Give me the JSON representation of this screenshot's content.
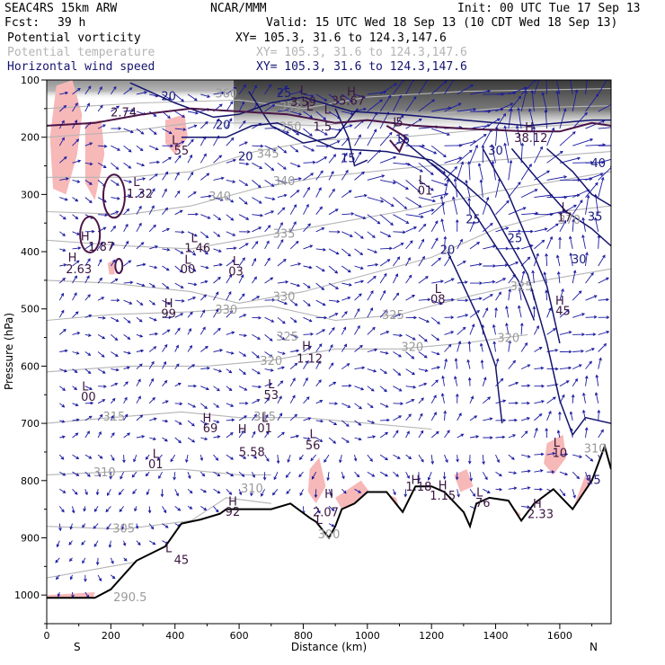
{
  "header": {
    "model": "SEAC4RS 15km ARW",
    "center": "NCAR/MMM",
    "init": "Init: 00 UTC Tue 17 Sep 13",
    "fcst_label": "Fcst:",
    "fcst_value": "39 h",
    "valid": "Valid: 15 UTC Wed 18 Sep 13 (10 CDT Wed 18 Sep 13)"
  },
  "fields": [
    {
      "name": "Potential vorticity",
      "xy": "XY= 105.3, 31.6 to 124.3,147.6",
      "color": "#000000"
    },
    {
      "name": "Potential temperature",
      "xy": "XY= 105.3, 31.6 to 124.3,147.6",
      "color": "#b4b4b4"
    },
    {
      "name": "Horizontal wind speed",
      "xy": "XY= 105.3, 31.6 to 124.3,147.6",
      "color": "#14146e"
    }
  ],
  "chart_data": {
    "type": "contour-cross-section",
    "xlabel": "Distance (km)",
    "ylabel": "Pressure (hPa)",
    "xlim": [
      0,
      1760
    ],
    "ylim": [
      1050,
      100
    ],
    "x_ticks": [
      "0",
      "200",
      "400",
      "600",
      "800",
      "1000",
      "1200",
      "1400",
      "1600"
    ],
    "y_ticks": [
      "100",
      "200",
      "300",
      "400",
      "500",
      "600",
      "700",
      "800",
      "900",
      "1000"
    ],
    "direction_start": "S",
    "direction_end": "N",
    "terrain": [
      [
        0,
        1005
      ],
      [
        150,
        1005
      ],
      [
        200,
        990
      ],
      [
        280,
        940
      ],
      [
        370,
        915
      ],
      [
        420,
        875
      ],
      [
        480,
        868
      ],
      [
        540,
        858
      ],
      [
        560,
        850
      ],
      [
        640,
        850
      ],
      [
        700,
        850
      ],
      [
        760,
        840
      ],
      [
        820,
        865
      ],
      [
        840,
        872
      ],
      [
        880,
        900
      ],
      [
        900,
        880
      ],
      [
        920,
        850
      ],
      [
        960,
        840
      ],
      [
        1000,
        820
      ],
      [
        1060,
        820
      ],
      [
        1110,
        855
      ],
      [
        1150,
        810
      ],
      [
        1200,
        810
      ],
      [
        1240,
        820
      ],
      [
        1300,
        855
      ],
      [
        1320,
        880
      ],
      [
        1340,
        840
      ],
      [
        1380,
        830
      ],
      [
        1440,
        835
      ],
      [
        1480,
        870
      ],
      [
        1520,
        840
      ],
      [
        1580,
        815
      ],
      [
        1640,
        850
      ],
      [
        1700,
        800
      ],
      [
        1740,
        740
      ],
      [
        1760,
        780
      ]
    ],
    "theta_labels": [
      {
        "text": "305",
        "x": 240,
        "p": 885
      },
      {
        "text": "310",
        "x": 180,
        "p": 787
      },
      {
        "text": "310",
        "x": 640,
        "p": 815
      },
      {
        "text": "315",
        "x": 210,
        "p": 690
      },
      {
        "text": "315",
        "x": 680,
        "p": 690
      },
      {
        "text": "320",
        "x": 700,
        "p": 592
      },
      {
        "text": "320",
        "x": 1140,
        "p": 568
      },
      {
        "text": "320",
        "x": 1440,
        "p": 552
      },
      {
        "text": "325",
        "x": 750,
        "p": 550
      },
      {
        "text": "325",
        "x": 1080,
        "p": 512
      },
      {
        "text": "325",
        "x": 1480,
        "p": 462
      },
      {
        "text": "330",
        "x": 560,
        "p": 503
      },
      {
        "text": "330",
        "x": 740,
        "p": 480
      },
      {
        "text": "335",
        "x": 740,
        "p": 370
      },
      {
        "text": "340",
        "x": 540,
        "p": 305
      },
      {
        "text": "340",
        "x": 740,
        "p": 278
      },
      {
        "text": "345",
        "x": 690,
        "p": 230
      },
      {
        "text": "350",
        "x": 760,
        "p": 183
      },
      {
        "text": "355",
        "x": 760,
        "p": 148
      },
      {
        "text": "360",
        "x": 560,
        "p": 125
      },
      {
        "text": "290.5",
        "x": 260,
        "p": 1005
      },
      {
        "text": "300",
        "x": 880,
        "p": 895
      },
      {
        "text": "310",
        "x": 1710,
        "p": 745
      },
      {
        "text": "370",
        "x": 1630,
        "p": 346
      }
    ],
    "wind_labels": [
      {
        "text": "20",
        "x": 380,
        "p": 130
      },
      {
        "text": "20",
        "x": 550,
        "p": 180
      },
      {
        "text": "20",
        "x": 620,
        "p": 235
      },
      {
        "text": "25",
        "x": 740,
        "p": 124
      },
      {
        "text": "15",
        "x": 940,
        "p": 238
      },
      {
        "text": "15",
        "x": 1110,
        "p": 205
      },
      {
        "text": "30",
        "x": 1400,
        "p": 225
      },
      {
        "text": "25",
        "x": 1330,
        "p": 345
      },
      {
        "text": "20",
        "x": 1250,
        "p": 398
      },
      {
        "text": "25",
        "x": 1460,
        "p": 378
      },
      {
        "text": "35",
        "x": 1710,
        "p": 340
      },
      {
        "text": "30",
        "x": 1660,
        "p": 415
      },
      {
        "text": "40",
        "x": 1720,
        "p": 247
      },
      {
        "text": "15",
        "x": 1705,
        "p": 800
      }
    ],
    "hl_labels": [
      {
        "text": "2.74",
        "x": 240,
        "p": 158
      },
      {
        "text": "L",
        "x": 400,
        "p": 207
      },
      {
        "text": "55",
        "x": 420,
        "p": 225
      },
      {
        "text": "L",
        "x": 280,
        "p": 280
      },
      {
        "text": "1.32",
        "x": 290,
        "p": 300
      },
      {
        "text": "H",
        "x": 120,
        "p": 375
      },
      {
        "text": "1.87",
        "x": 170,
        "p": 393
      },
      {
        "text": "H",
        "x": 80,
        "p": 412
      },
      {
        "text": "2.63",
        "x": 100,
        "p": 432
      },
      {
        "text": "L",
        "x": 460,
        "p": 378
      },
      {
        "text": "1.46",
        "x": 470,
        "p": 395
      },
      {
        "text": "L",
        "x": 440,
        "p": 416
      },
      {
        "text": "00",
        "x": 440,
        "p": 432
      },
      {
        "text": "L",
        "x": 590,
        "p": 418
      },
      {
        "text": "03",
        "x": 590,
        "p": 436
      },
      {
        "text": "H",
        "x": 380,
        "p": 492
      },
      {
        "text": "99",
        "x": 380,
        "p": 510
      },
      {
        "text": "L",
        "x": 120,
        "p": 637
      },
      {
        "text": "00",
        "x": 130,
        "p": 655
      },
      {
        "text": "H",
        "x": 500,
        "p": 692
      },
      {
        "text": "69",
        "x": 510,
        "p": 710
      },
      {
        "text": "L",
        "x": 340,
        "p": 755
      },
      {
        "text": "01",
        "x": 340,
        "p": 773
      },
      {
        "text": "H",
        "x": 610,
        "p": 712
      },
      {
        "text": "5.58",
        "x": 640,
        "p": 752
      },
      {
        "text": "L",
        "x": 700,
        "p": 633
      },
      {
        "text": "53",
        "x": 700,
        "p": 652
      },
      {
        "text": "L",
        "x": 680,
        "p": 692
      },
      {
        "text": "01",
        "x": 680,
        "p": 710
      },
      {
        "text": "L",
        "x": 830,
        "p": 720
      },
      {
        "text": "56",
        "x": 830,
        "p": 740
      },
      {
        "text": "H",
        "x": 810,
        "p": 566
      },
      {
        "text": "1.12",
        "x": 820,
        "p": 588
      },
      {
        "text": "H",
        "x": 580,
        "p": 838
      },
      {
        "text": "92",
        "x": 580,
        "p": 856
      },
      {
        "text": "L",
        "x": 380,
        "p": 920
      },
      {
        "text": "45",
        "x": 420,
        "p": 940
      },
      {
        "text": "L",
        "x": 850,
        "p": 870
      },
      {
        "text": "H",
        "x": 880,
        "p": 825
      },
      {
        "text": "2.07",
        "x": 870,
        "p": 857
      },
      {
        "text": "H",
        "x": 1150,
        "p": 800
      },
      {
        "text": "1.18",
        "x": 1160,
        "p": 812
      },
      {
        "text": "H",
        "x": 1235,
        "p": 810
      },
      {
        "text": "1.15",
        "x": 1235,
        "p": 828
      },
      {
        "text": "L",
        "x": 1350,
        "p": 822
      },
      {
        "text": "76",
        "x": 1360,
        "p": 840
      },
      {
        "text": "H",
        "x": 1530,
        "p": 842
      },
      {
        "text": "2.33",
        "x": 1540,
        "p": 860
      },
      {
        "text": "L",
        "x": 1590,
        "p": 735
      },
      {
        "text": "10",
        "x": 1600,
        "p": 753
      },
      {
        "text": "H",
        "x": 1600,
        "p": 487
      },
      {
        "text": "45",
        "x": 1610,
        "p": 505
      },
      {
        "text": "L",
        "x": 1220,
        "p": 467
      },
      {
        "text": "08",
        "x": 1220,
        "p": 485
      },
      {
        "text": "L",
        "x": 1170,
        "p": 277
      },
      {
        "text": "01",
        "x": 1180,
        "p": 295
      },
      {
        "text": "L",
        "x": 1615,
        "p": 324
      },
      {
        "text": "17",
        "x": 1615,
        "p": 342
      },
      {
        "text": "H",
        "x": 1505,
        "p": 184
      },
      {
        "text": "38.12",
        "x": 1510,
        "p": 203
      },
      {
        "text": "L",
        "x": 1090,
        "p": 175
      },
      {
        "text": "5",
        "x": 1100,
        "p": 175
      },
      {
        "text": "H",
        "x": 950,
        "p": 122
      },
      {
        "text": "35.67",
        "x": 940,
        "p": 138
      },
      {
        "text": "L",
        "x": 800,
        "p": 120
      },
      {
        "text": "3.59",
        "x": 800,
        "p": 140
      },
      {
        "text": "L",
        "x": 875,
        "p": 153
      },
      {
        "text": "L",
        "x": 820,
        "p": 148
      },
      {
        "text": "1.5",
        "x": 860,
        "p": 183
      }
    ]
  }
}
